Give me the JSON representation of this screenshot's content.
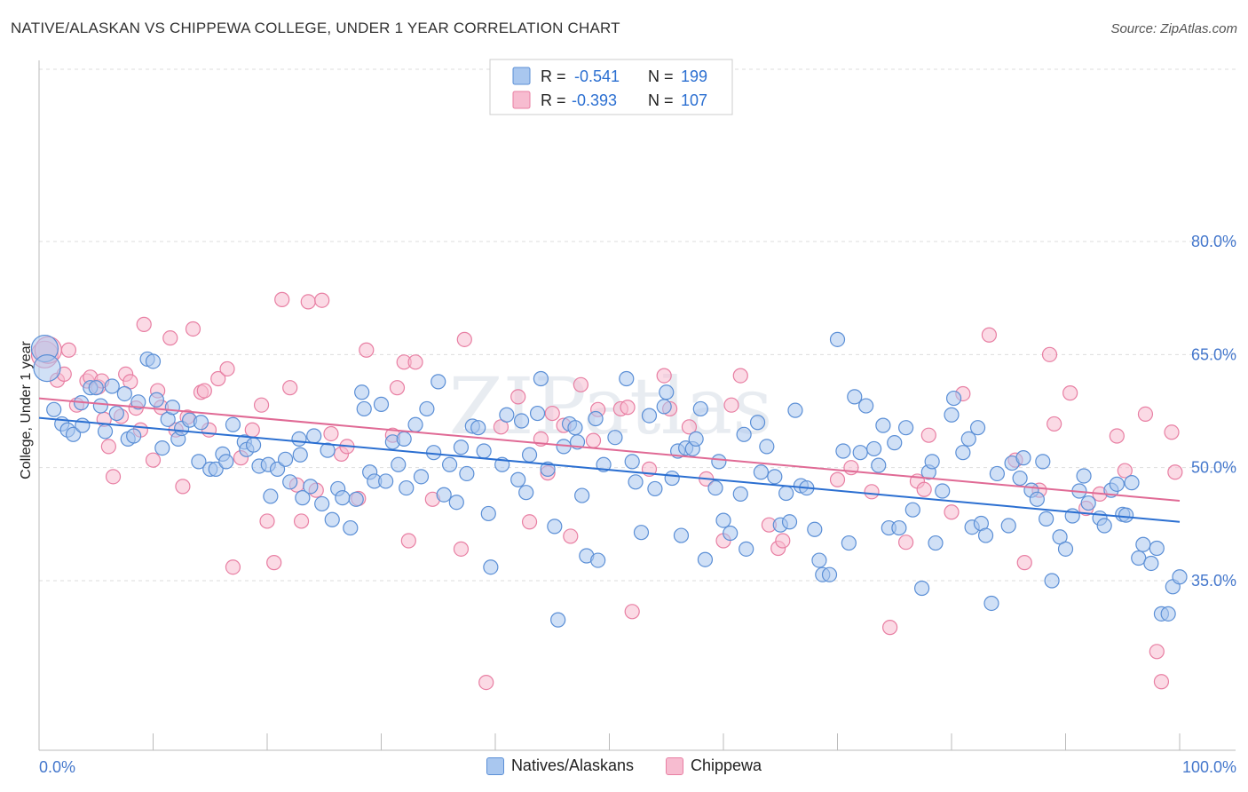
{
  "header": {
    "title": "NATIVE/ALASKAN VS CHIPPEWA COLLEGE, UNDER 1 YEAR CORRELATION CHART",
    "source": "Source: ZipAtlas.com"
  },
  "legend_box": {
    "rows": [
      {
        "r_label": "R =",
        "r_value": "-0.541",
        "n_label": "N =",
        "n_value": "199"
      },
      {
        "r_label": "R =",
        "r_value": "-0.393",
        "n_label": "N =",
        "n_value": "107"
      }
    ]
  },
  "watermark": "ZIPatlas",
  "colors": {
    "blue_fill": "#a9c7ef",
    "blue_stroke": "#5b8fd6",
    "blue_line": "#2b6fd1",
    "pink_fill": "#f7bcd0",
    "pink_stroke": "#e87fa3",
    "pink_line": "#e06a95",
    "tick": "#4477cc",
    "grid": "#dddddd"
  },
  "chart_data": {
    "type": "scatter",
    "title": "NATIVE/ALASKAN VS CHIPPEWA COLLEGE, UNDER 1 YEAR CORRELATION CHART",
    "xlabel": "",
    "ylabel": "College, Under 1 year",
    "xlim": [
      0,
      100
    ],
    "ylim": [
      16,
      83
    ],
    "x_tick_labels": [
      "0.0%",
      "100.0%"
    ],
    "y_ticks": [
      35,
      50,
      65,
      80
    ],
    "y_tick_labels": [
      "35.0%",
      "50.0%",
      "65.0%",
      "80.0%"
    ],
    "grid": "horizontal dashed",
    "legend_placement": "top-center",
    "series": [
      {
        "name": "Natives/Alaskans",
        "r": -0.541,
        "n": 199,
        "trend": {
          "x0": 0,
          "y0": 56.6,
          "x1": 100,
          "y1": 42.8
        },
        "points": [
          [
            0.5,
            65.8
          ],
          [
            0.7,
            63.2
          ],
          [
            1.3,
            57.7
          ],
          [
            2,
            55.8
          ],
          [
            2.5,
            55
          ],
          [
            3.0,
            54.4
          ],
          [
            3.7,
            58.6
          ],
          [
            3.8,
            55.6
          ],
          [
            4.5,
            60.6
          ],
          [
            5,
            60.6
          ],
          [
            5.4,
            58.2
          ],
          [
            5.8,
            54.8
          ],
          [
            6.4,
            60.8
          ],
          [
            6.8,
            57.2
          ],
          [
            7.5,
            59.8
          ],
          [
            7.8,
            53.8
          ],
          [
            8.3,
            54.2
          ],
          [
            8.7,
            58.7
          ],
          [
            9.5,
            64.4
          ],
          [
            10,
            64.1
          ],
          [
            10.3,
            59
          ],
          [
            10.8,
            52.6
          ],
          [
            11.3,
            56.4
          ],
          [
            11.7,
            58
          ],
          [
            12.2,
            53.8
          ],
          [
            12.5,
            55.2
          ],
          [
            13.2,
            56.3
          ],
          [
            14,
            50.8
          ],
          [
            14.2,
            56
          ],
          [
            15,
            49.8
          ],
          [
            15.5,
            49.8
          ],
          [
            16.1,
            51.8
          ],
          [
            16.4,
            50.8
          ],
          [
            17,
            55.7
          ],
          [
            18,
            53.4
          ],
          [
            18.2,
            52.4
          ],
          [
            18.8,
            53
          ],
          [
            19.3,
            50.2
          ],
          [
            20.1,
            50.4
          ],
          [
            20.3,
            46.2
          ],
          [
            20.9,
            49.8
          ],
          [
            21.6,
            51.1
          ],
          [
            22,
            48.1
          ],
          [
            22.8,
            53.8
          ],
          [
            22.9,
            51.7
          ],
          [
            23.1,
            46
          ],
          [
            23.8,
            47.5
          ],
          [
            24.1,
            54.2
          ],
          [
            24.8,
            45.2
          ],
          [
            25.3,
            52.3
          ],
          [
            25.7,
            43.1
          ],
          [
            26.2,
            47.2
          ],
          [
            26.6,
            46
          ],
          [
            27.3,
            42
          ],
          [
            27.8,
            45.8
          ],
          [
            28.3,
            60
          ],
          [
            28.5,
            57.8
          ],
          [
            29,
            49.4
          ],
          [
            29.4,
            48.2
          ],
          [
            30,
            58.4
          ],
          [
            30.4,
            48.2
          ],
          [
            31,
            53.4
          ],
          [
            31.5,
            50.4
          ],
          [
            32,
            53.8
          ],
          [
            32.2,
            47.3
          ],
          [
            33,
            55.7
          ],
          [
            33.5,
            48.8
          ],
          [
            34,
            57.8
          ],
          [
            34.6,
            52
          ],
          [
            35,
            61.4
          ],
          [
            35.5,
            46.4
          ],
          [
            36,
            50.4
          ],
          [
            36.6,
            45.4
          ],
          [
            37,
            52.7
          ],
          [
            37.5,
            49.2
          ],
          [
            38,
            55.5
          ],
          [
            38.5,
            55.3
          ],
          [
            39,
            52.2
          ],
          [
            39.4,
            43.9
          ],
          [
            39.6,
            36.8
          ],
          [
            40.6,
            50.4
          ],
          [
            41,
            57
          ],
          [
            42,
            48.4
          ],
          [
            42.3,
            56.2
          ],
          [
            42.7,
            46.7
          ],
          [
            43,
            51.7
          ],
          [
            43.7,
            57.2
          ],
          [
            44,
            61.8
          ],
          [
            44.6,
            49.8
          ],
          [
            45.2,
            42.2
          ],
          [
            45.5,
            29.8
          ],
          [
            46,
            52.8
          ],
          [
            46.5,
            55.8
          ],
          [
            47,
            55.3
          ],
          [
            47.2,
            53.4
          ],
          [
            47.6,
            46.3
          ],
          [
            48,
            38.3
          ],
          [
            48.8,
            56.5
          ],
          [
            49,
            37.7
          ],
          [
            49.5,
            50.4
          ],
          [
            50.5,
            54
          ],
          [
            51.5,
            61.8
          ],
          [
            52,
            50.8
          ],
          [
            52.3,
            48.1
          ],
          [
            52.8,
            41.4
          ],
          [
            53.5,
            56.9
          ],
          [
            54,
            47.2
          ],
          [
            54.8,
            58.1
          ],
          [
            55,
            60
          ],
          [
            55.5,
            48.6
          ],
          [
            56,
            52.2
          ],
          [
            56.3,
            41
          ],
          [
            56.7,
            52.6
          ],
          [
            57.3,
            52.5
          ],
          [
            57.6,
            53.8
          ],
          [
            58,
            57.8
          ],
          [
            58.4,
            37.8
          ],
          [
            59.3,
            47.3
          ],
          [
            59.6,
            50.8
          ],
          [
            60,
            43
          ],
          [
            60.6,
            41.3
          ],
          [
            61.5,
            46.5
          ],
          [
            61.8,
            54.4
          ],
          [
            62,
            39.2
          ],
          [
            63,
            56
          ],
          [
            63.3,
            49.4
          ],
          [
            63.8,
            52.8
          ],
          [
            64.5,
            48.8
          ],
          [
            65,
            42.4
          ],
          [
            65.5,
            46.6
          ],
          [
            65.8,
            42.8
          ],
          [
            66.3,
            57.6
          ],
          [
            66.8,
            47.6
          ],
          [
            67.3,
            47.3
          ],
          [
            68,
            41.8
          ],
          [
            68.4,
            37.7
          ],
          [
            68.7,
            35.8
          ],
          [
            69.3,
            35.8
          ],
          [
            70,
            67
          ],
          [
            70.5,
            52.2
          ],
          [
            71,
            40
          ],
          [
            71.5,
            59.4
          ],
          [
            72,
            52
          ],
          [
            72.5,
            58.2
          ],
          [
            73.2,
            52.5
          ],
          [
            73.6,
            50.3
          ],
          [
            74,
            55.6
          ],
          [
            74.5,
            42
          ],
          [
            75,
            53.3
          ],
          [
            75.4,
            42
          ],
          [
            76,
            55.3
          ],
          [
            76.6,
            44.4
          ],
          [
            77.4,
            34
          ],
          [
            78,
            49.4
          ],
          [
            78.3,
            50.8
          ],
          [
            78.6,
            40
          ],
          [
            79.2,
            46.9
          ],
          [
            80,
            57
          ],
          [
            80.2,
            59.2
          ],
          [
            81,
            52
          ],
          [
            81.5,
            53.8
          ],
          [
            81.8,
            42.1
          ],
          [
            82.3,
            55.3
          ],
          [
            82.6,
            42.6
          ],
          [
            83,
            41
          ],
          [
            83.5,
            32
          ],
          [
            84,
            49.2
          ],
          [
            85,
            42.3
          ],
          [
            85.3,
            50.6
          ],
          [
            86,
            48.6
          ],
          [
            86.3,
            51.3
          ],
          [
            87,
            47
          ],
          [
            87.5,
            45.8
          ],
          [
            88,
            50.8
          ],
          [
            88.3,
            43.2
          ],
          [
            88.8,
            35
          ],
          [
            89.5,
            40.8
          ],
          [
            90,
            39.2
          ],
          [
            90.6,
            43.6
          ],
          [
            91.2,
            46.9
          ],
          [
            91.6,
            48.9
          ],
          [
            92,
            45.3
          ],
          [
            93,
            43.3
          ],
          [
            93.4,
            42.3
          ],
          [
            94,
            47
          ],
          [
            94.5,
            47.8
          ],
          [
            95,
            43.8
          ],
          [
            95.3,
            43.7
          ],
          [
            95.8,
            48
          ],
          [
            96.4,
            38
          ],
          [
            96.8,
            39.8
          ],
          [
            97.5,
            37.3
          ],
          [
            98,
            39.3
          ],
          [
            98.4,
            30.6
          ],
          [
            99,
            30.6
          ],
          [
            99.4,
            34.2
          ],
          [
            100,
            35.5
          ]
        ]
      },
      {
        "name": "Chippewa",
        "r": -0.393,
        "n": 107,
        "trend": {
          "x0": 0,
          "y0": 59.2,
          "x1": 100,
          "y1": 45.6
        },
        "points": [
          [
            0.5,
            65
          ],
          [
            0.8,
            65.6
          ],
          [
            1.6,
            61.6
          ],
          [
            2.2,
            62.4
          ],
          [
            2.6,
            65.6
          ],
          [
            3.3,
            58.3
          ],
          [
            4.2,
            61.5
          ],
          [
            4.5,
            62
          ],
          [
            5.2,
            60.7
          ],
          [
            5.5,
            61.5
          ],
          [
            5.7,
            56.4
          ],
          [
            6.1,
            52.8
          ],
          [
            6.5,
            48.8
          ],
          [
            7.2,
            56.8
          ],
          [
            7.6,
            62.4
          ],
          [
            8,
            61.4
          ],
          [
            8.5,
            57.9
          ],
          [
            8.9,
            55
          ],
          [
            9.2,
            69
          ],
          [
            10,
            51
          ],
          [
            10.4,
            60.2
          ],
          [
            10.7,
            58
          ],
          [
            11.5,
            67.2
          ],
          [
            12,
            55
          ],
          [
            12.6,
            47.5
          ],
          [
            13,
            56.7
          ],
          [
            13.5,
            68.4
          ],
          [
            14.2,
            60
          ],
          [
            14.5,
            60.2
          ],
          [
            14.9,
            55
          ],
          [
            15.7,
            61.8
          ],
          [
            16.5,
            63.1
          ],
          [
            17,
            36.8
          ],
          [
            17.7,
            51.3
          ],
          [
            18.7,
            55
          ],
          [
            19.5,
            58.3
          ],
          [
            20,
            42.9
          ],
          [
            20.6,
            37.4
          ],
          [
            21.3,
            72.3
          ],
          [
            22,
            60.6
          ],
          [
            22.6,
            47.7
          ],
          [
            23,
            42.9
          ],
          [
            23.6,
            72
          ],
          [
            24.3,
            47
          ],
          [
            24.8,
            72.2
          ],
          [
            25.6,
            54.5
          ],
          [
            26.5,
            51.8
          ],
          [
            27,
            52.8
          ],
          [
            28,
            45.9
          ],
          [
            28.7,
            65.6
          ],
          [
            31,
            54.3
          ],
          [
            31.4,
            60.6
          ],
          [
            32,
            64
          ],
          [
            32.4,
            40.3
          ],
          [
            33,
            64
          ],
          [
            34.5,
            45.8
          ],
          [
            37,
            39.2
          ],
          [
            37.3,
            67
          ],
          [
            39.2,
            21.5
          ],
          [
            40.5,
            55.4
          ],
          [
            42,
            59.4
          ],
          [
            43,
            42.8
          ],
          [
            44,
            53.8
          ],
          [
            44.6,
            49.3
          ],
          [
            45,
            57.2
          ],
          [
            46,
            55.6
          ],
          [
            46.6,
            40.9
          ],
          [
            47.5,
            61
          ],
          [
            48.6,
            53.6
          ],
          [
            49,
            57.7
          ],
          [
            51,
            57.8
          ],
          [
            51.6,
            58
          ],
          [
            52,
            30.9
          ],
          [
            53.5,
            49.8
          ],
          [
            54.8,
            62.2
          ],
          [
            55.3,
            57.8
          ],
          [
            57,
            55.4
          ],
          [
            58.5,
            48.5
          ],
          [
            60,
            40.3
          ],
          [
            60.7,
            58.3
          ],
          [
            61.5,
            62.2
          ],
          [
            64,
            42.4
          ],
          [
            64.8,
            39.3
          ],
          [
            65.2,
            40.3
          ],
          [
            70,
            48.4
          ],
          [
            71.2,
            50
          ],
          [
            73,
            46.8
          ],
          [
            74.6,
            28.8
          ],
          [
            76,
            40.1
          ],
          [
            77,
            48.2
          ],
          [
            77.6,
            47.1
          ],
          [
            78,
            54.3
          ],
          [
            80,
            44.1
          ],
          [
            81,
            59.8
          ],
          [
            83.3,
            67.6
          ],
          [
            85.6,
            51
          ],
          [
            86.4,
            37.4
          ],
          [
            87.7,
            47
          ],
          [
            88.6,
            65
          ],
          [
            89,
            55.8
          ],
          [
            90.4,
            59.9
          ],
          [
            91.8,
            44.6
          ],
          [
            93,
            46.5
          ],
          [
            94.5,
            54.2
          ],
          [
            95.2,
            49.6
          ],
          [
            97,
            57.1
          ],
          [
            98,
            25.6
          ],
          [
            98.4,
            21.6
          ],
          [
            99.3,
            54.7
          ],
          [
            99.6,
            49.4
          ]
        ]
      }
    ]
  }
}
